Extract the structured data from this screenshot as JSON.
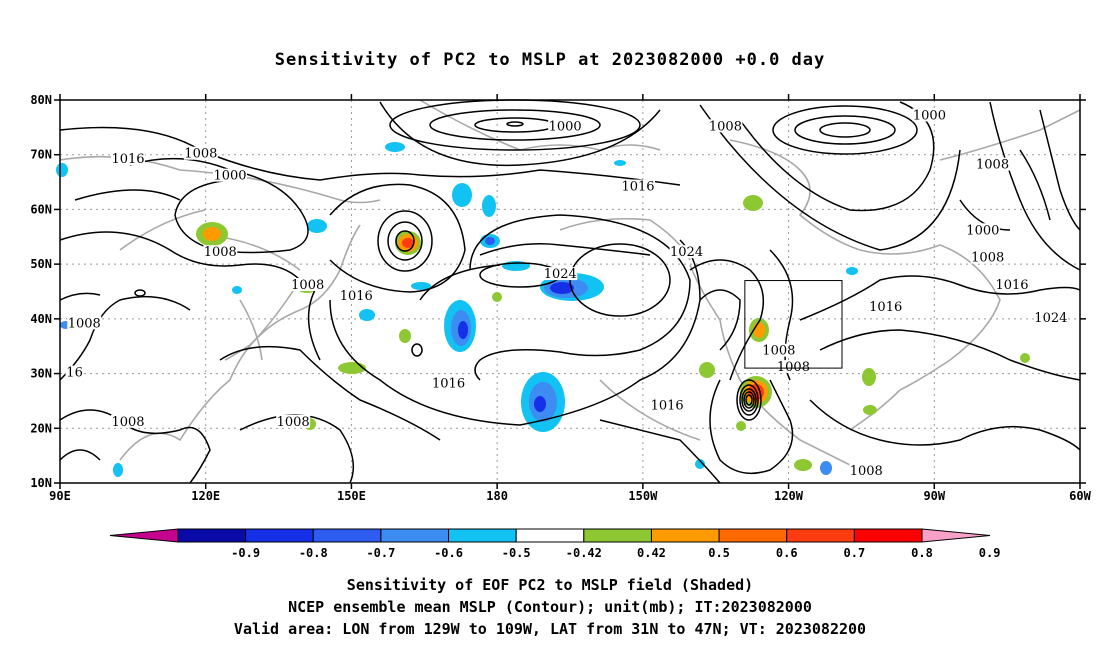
{
  "title": "Sensitivity of PC2 to MSLP at 2023082000 +0.0 day",
  "map": {
    "lat_labels": [
      "80N",
      "70N",
      "60N",
      "50N",
      "40N",
      "30N",
      "20N",
      "10N"
    ],
    "lon_labels": [
      "90E",
      "120E",
      "150E",
      "180",
      "150W",
      "120W",
      "90W",
      "60W"
    ],
    "lon_range": [
      90,
      300
    ],
    "lat_range": [
      10,
      80
    ],
    "valid_box": {
      "lon_w": -129,
      "lon_e": -109,
      "lat_s": 31,
      "lat_n": 47
    },
    "contour_labels": [
      {
        "text": "1016",
        "lon": 104,
        "lat": 69
      },
      {
        "text": "1008",
        "lon": 119,
        "lat": 70
      },
      {
        "text": "1000",
        "lon": 125,
        "lat": 66
      },
      {
        "text": "1008",
        "lon": 123,
        "lat": 52
      },
      {
        "text": "1000",
        "lon": 194,
        "lat": 75
      },
      {
        "text": "1008",
        "lon": 227,
        "lat": 75
      },
      {
        "text": "1000",
        "lon": 269,
        "lat": 77
      },
      {
        "text": "1008",
        "lon": 282,
        "lat": 68
      },
      {
        "text": "1016",
        "lon": 209,
        "lat": 64
      },
      {
        "text": "1024",
        "lon": 193,
        "lat": 48
      },
      {
        "text": "1024",
        "lon": 219,
        "lat": 52
      },
      {
        "text": "1008",
        "lon": 141,
        "lat": 46
      },
      {
        "text": "1016",
        "lon": 151,
        "lat": 44
      },
      {
        "text": "1008",
        "lon": 95,
        "lat": 39
      },
      {
        "text": "1016",
        "lon": 170,
        "lat": 28
      },
      {
        "text": "1016",
        "lon": 215,
        "lat": 24
      },
      {
        "text": "1008",
        "lon": 104,
        "lat": 21
      },
      {
        "text": "1008",
        "lon": 138,
        "lat": 21
      },
      {
        "text": "16",
        "lon": 93,
        "lat": 30
      },
      {
        "text": "1016",
        "lon": 260,
        "lat": 42
      },
      {
        "text": "1008",
        "lon": 238,
        "lat": 34
      },
      {
        "text": "1008",
        "lon": 241,
        "lat": 31
      },
      {
        "text": "1000",
        "lon": 280,
        "lat": 56
      },
      {
        "text": "1008",
        "lon": 281,
        "lat": 51
      },
      {
        "text": "1016",
        "lon": 286,
        "lat": 46
      },
      {
        "text": "1024",
        "lon": 294,
        "lat": 40
      },
      {
        "text": "1008",
        "lon": 256,
        "lat": 12
      }
    ]
  },
  "colorbar": {
    "labels": [
      "-0.9",
      "-0.8",
      "-0.7",
      "-0.6",
      "-0.5",
      "-0.42",
      "0.42",
      "0.5",
      "0.6",
      "0.7",
      "0.8",
      "0.9"
    ],
    "colors": [
      "#c4038e",
      "#0a0aa8",
      "#1630e8",
      "#2e5cf0",
      "#3c8cf2",
      "#12c2f2",
      "#ffffff",
      "#8dc832",
      "#ff9a00",
      "#ff6a00",
      "#ff3c10",
      "#ff0000",
      "#f7a1c8"
    ]
  },
  "captions": [
    "Sensitivity of EOF PC2 to MSLP field (Shaded)",
    "NCEP ensemble mean MSLP (Contour); unit(mb); IT:2023082000",
    "Valid area: LON from 129W to 109W, LAT from 31N to 47N; VT: 2023082200"
  ]
}
